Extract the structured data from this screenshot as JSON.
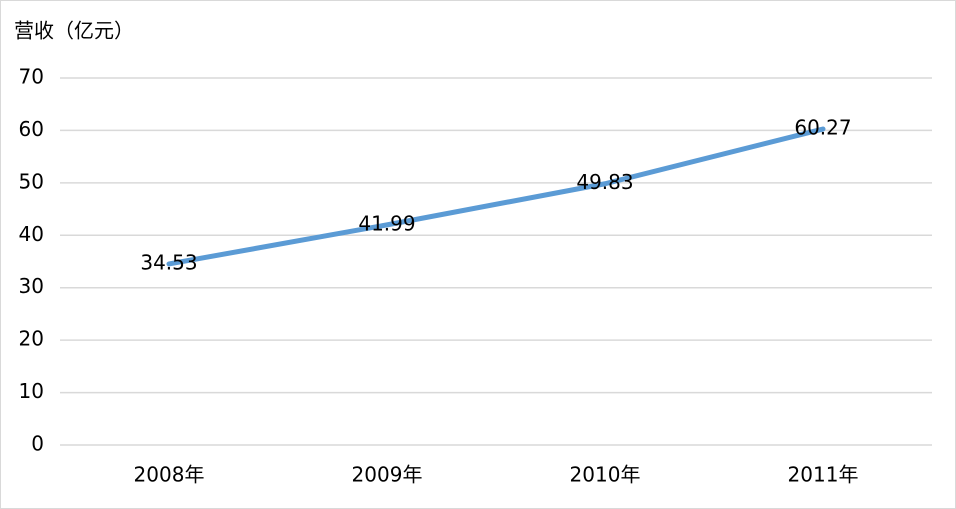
{
  "chart_data": {
    "type": "line",
    "title": "营收（亿元）",
    "categories": [
      "2008年",
      "2009年",
      "2010年",
      "2011年"
    ],
    "series": [
      {
        "name": "营收",
        "color": "#5b9bd5",
        "values": [
          34.53,
          41.99,
          49.83,
          60.27
        ]
      }
    ],
    "ylim": [
      0,
      70
    ],
    "yticks": [
      0,
      10,
      20,
      30,
      40,
      50,
      60,
      70
    ],
    "grid": true
  }
}
